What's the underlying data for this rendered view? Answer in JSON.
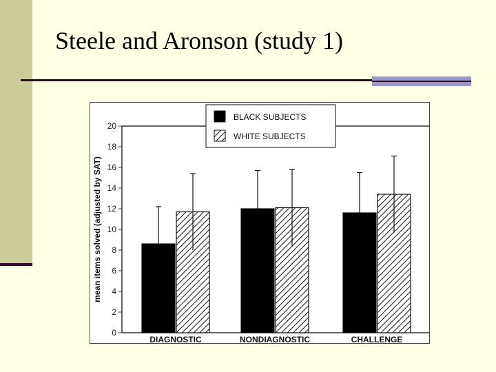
{
  "slide": {
    "title": "Steele and Aronson (study 1)"
  },
  "colors": {
    "background": "#ffffe6",
    "left_bar": "#cccc99",
    "accent": "#9999cc",
    "rule": "#2a0a24"
  },
  "chart_data": {
    "type": "bar",
    "title": "",
    "xlabel": "",
    "ylabel": "mean items solved (adjusted by SAT)",
    "ylim": [
      0,
      20
    ],
    "yticks": [
      0,
      2,
      4,
      6,
      8,
      10,
      12,
      14,
      16,
      18,
      20
    ],
    "categories": [
      "DIAGNOSTIC",
      "NONDIAGNOSTIC",
      "CHALLENGE"
    ],
    "series": [
      {
        "name": "BLACK SUBJECTS",
        "fill": "solid-black",
        "values": [
          8.6,
          12.0,
          11.6
        ],
        "error_upper": [
          12.2,
          15.7,
          15.5
        ],
        "error_lower": [
          8.6,
          12.0,
          11.6
        ]
      },
      {
        "name": "WHITE SUBJECTS",
        "fill": "diagonal-hatch",
        "values": [
          11.7,
          12.1,
          13.4
        ],
        "error_upper": [
          15.4,
          15.8,
          17.1
        ],
        "error_lower": [
          8.0,
          8.3,
          9.7
        ]
      }
    ],
    "legend": {
      "position": "top-center"
    },
    "grid": false
  }
}
